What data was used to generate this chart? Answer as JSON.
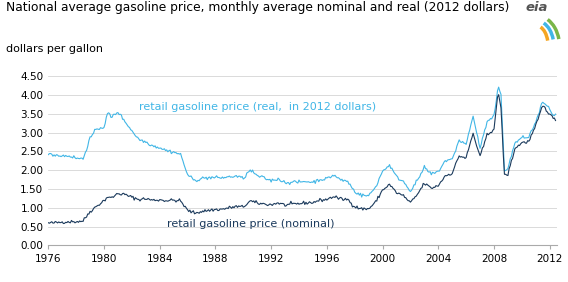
{
  "title": "National average gasoline price, monthly average nominal and real (2012 dollars)",
  "subtitle": "dollars per gallon",
  "ylim": [
    0.0,
    4.5
  ],
  "yticks": [
    0.0,
    0.5,
    1.0,
    1.5,
    2.0,
    2.5,
    3.0,
    3.5,
    4.0,
    4.5
  ],
  "xlim": [
    1976,
    2012.5
  ],
  "xticks": [
    1976,
    1980,
    1984,
    1988,
    1992,
    1996,
    2000,
    2004,
    2008,
    2012
  ],
  "nominal_color": "#1b3a5c",
  "real_color": "#41b6e6",
  "background_color": "#ffffff",
  "label_nominal": "retail gasoline price (nominal)",
  "label_real": "retail gasoline price (real,  in 2012 dollars)",
  "title_fontsize": 8.8,
  "subtitle_fontsize": 8.0,
  "label_fontsize": 8.0,
  "tick_fontsize": 7.5
}
